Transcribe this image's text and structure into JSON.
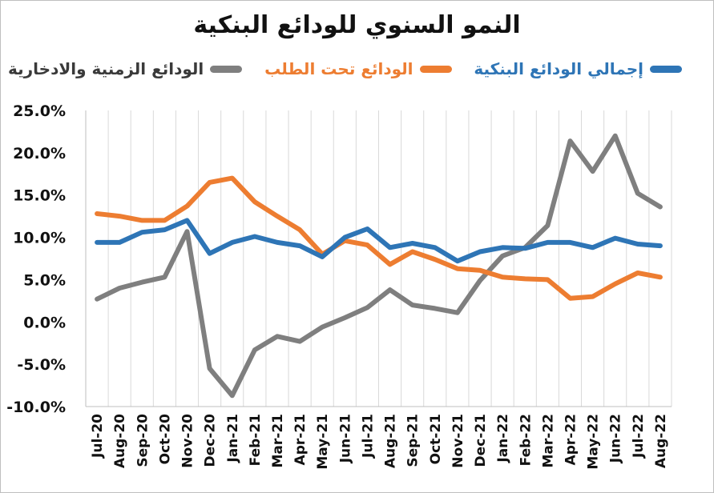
{
  "chart_data": {
    "type": "line",
    "title": "النمو السنوي للودائع البنكية",
    "xlabel": "",
    "ylabel": "",
    "ylim": [
      -10,
      25
    ],
    "yticks": [
      "25.0%",
      "20.0%",
      "15.0%",
      "10.0%",
      "5.0%",
      "0.0%",
      "-5.0%",
      "-10.0%"
    ],
    "ytick_values": [
      25,
      20,
      15,
      10,
      5,
      0,
      -5,
      -10
    ],
    "grid": "vertical",
    "legend_position": "top",
    "categories": [
      "Jul-20",
      "Aug-20",
      "Sep-20",
      "Oct-20",
      "Nov-20",
      "Dec-20",
      "Jan-21",
      "Feb-21",
      "Mar-21",
      "Apr-21",
      "May-21",
      "Jun-21",
      "Jul-21",
      "Aug-21",
      "Sep-21",
      "Oct-21",
      "Nov-21",
      "Dec-21",
      "Jan-22",
      "Feb-22",
      "Mar-22",
      "Apr-22",
      "May-22",
      "Jun-22",
      "Jul-22",
      "Aug-22"
    ],
    "series": [
      {
        "name": "إجمالي الودائع البنكية",
        "color": "#2e75b6",
        "values": [
          9.4,
          9.4,
          10.6,
          10.9,
          12.0,
          8.1,
          9.4,
          10.1,
          9.4,
          9.0,
          7.7,
          10.0,
          11.0,
          8.8,
          9.3,
          8.8,
          7.2,
          8.3,
          8.8,
          8.7,
          9.4,
          9.4,
          8.8,
          9.9,
          9.2,
          9.0
        ]
      },
      {
        "name": "الودائع تحت الطلب",
        "color": "#ed7d31",
        "values": [
          12.8,
          12.5,
          12.0,
          12.0,
          13.7,
          16.5,
          17.0,
          14.2,
          12.5,
          10.9,
          8.0,
          9.6,
          9.1,
          6.8,
          8.3,
          7.4,
          6.3,
          6.1,
          5.3,
          5.1,
          5.0,
          2.8,
          3.0,
          4.5,
          5.8,
          5.3
        ]
      },
      {
        "name": "الودائع الزمنية والادخارية",
        "color": "#7f7f7f",
        "values": [
          2.7,
          4.0,
          4.7,
          5.3,
          10.7,
          -5.5,
          -8.7,
          -3.3,
          -1.7,
          -2.3,
          -0.6,
          0.5,
          1.7,
          3.8,
          2.0,
          1.6,
          1.1,
          4.9,
          7.8,
          8.8,
          11.4,
          21.4,
          17.8,
          22.0,
          15.2,
          13.6
        ]
      }
    ]
  }
}
